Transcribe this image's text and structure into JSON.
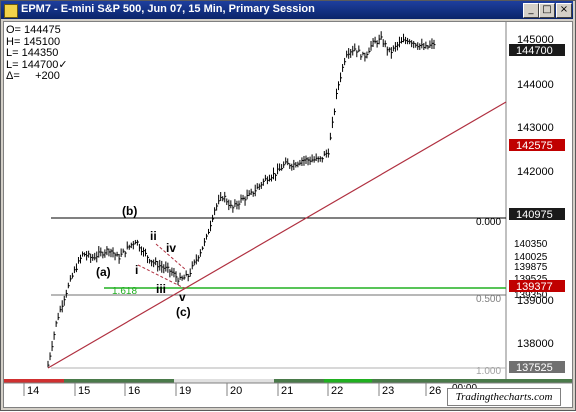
{
  "window": {
    "title": "EPM7 - E-mini S&P 500, Jun 07, 15 Min, Primary Session",
    "buttons": [
      "_",
      "□",
      "×"
    ]
  },
  "info": [
    {
      "label": "O=",
      "value": "144475"
    },
    {
      "label": "H=",
      "value": "145100"
    },
    {
      "label": "L=",
      "value": "144350"
    },
    {
      "label": "L=",
      "value": "144700✓"
    },
    {
      "label": "Δ=",
      "value": "+200"
    }
  ],
  "axis_labels": [
    "145000",
    "144000",
    "143000",
    "142000",
    "139000",
    "138000"
  ],
  "price_tags": {
    "last": "144700",
    "red_top": "142575",
    "black_level": "140975",
    "l1": "140350",
    "l2": "140025",
    "l3": "139875",
    "l4": "139525",
    "red_low": "139377",
    "l5": "139350",
    "bottom": "137525"
  },
  "fib_labels": {
    "zero": "0.000",
    "half": "0.500",
    "one": "1.000",
    "green": "1.618"
  },
  "wave_labels": [
    "(b)",
    "(a)",
    "ii",
    "i",
    "iv",
    "iii",
    "v",
    "(c)"
  ],
  "dates": [
    "14",
    "15",
    "16",
    "19",
    "20",
    "21",
    "22",
    "23",
    "26",
    "00:00"
  ],
  "logo": "Tradingthecharts.com",
  "colors": {
    "trendline": "#b03040",
    "green": "#20b020",
    "tag_red": "#c00000",
    "tag_dark": "#1a1a1a"
  },
  "chart_data": {
    "type": "ohlc",
    "title": "EPM7 - E-mini S&P 500, Jun 07, 15 Min, Primary Session",
    "ylim": [
      1374,
      1452
    ],
    "x_tick_labels": [
      "14",
      "15",
      "16",
      "19",
      "20",
      "21",
      "22",
      "23",
      "26"
    ],
    "close_path": [
      [
        0,
        1376
      ],
      [
        2,
        1386
      ],
      [
        4,
        1392
      ],
      [
        6,
        1397
      ],
      [
        8,
        1401
      ],
      [
        10,
        1400
      ],
      [
        12,
        1401
      ],
      [
        14,
        1402
      ],
      [
        16,
        1400
      ],
      [
        18,
        1402
      ],
      [
        20,
        1404
      ],
      [
        22,
        1401
      ],
      [
        24,
        1399
      ],
      [
        26,
        1398
      ],
      [
        28,
        1397
      ],
      [
        30,
        1395
      ],
      [
        32,
        1396
      ],
      [
        34,
        1400
      ],
      [
        36,
        1404
      ],
      [
        38,
        1411
      ],
      [
        40,
        1414
      ],
      [
        42,
        1411
      ],
      [
        44,
        1413
      ],
      [
        46,
        1414
      ],
      [
        48,
        1416
      ],
      [
        50,
        1418
      ],
      [
        52,
        1419
      ],
      [
        54,
        1421
      ],
      [
        56,
        1421
      ],
      [
        58,
        1422
      ],
      [
        60,
        1422
      ],
      [
        62,
        1422
      ],
      [
        64,
        1424
      ],
      [
        66,
        1438
      ],
      [
        68,
        1446
      ],
      [
        70,
        1447
      ],
      [
        72,
        1445
      ],
      [
        74,
        1448
      ],
      [
        76,
        1449
      ],
      [
        78,
        1446
      ],
      [
        80,
        1448
      ],
      [
        82,
        1449
      ],
      [
        84,
        1448
      ],
      [
        86,
        1447
      ],
      [
        88,
        1448
      ]
    ]
  }
}
